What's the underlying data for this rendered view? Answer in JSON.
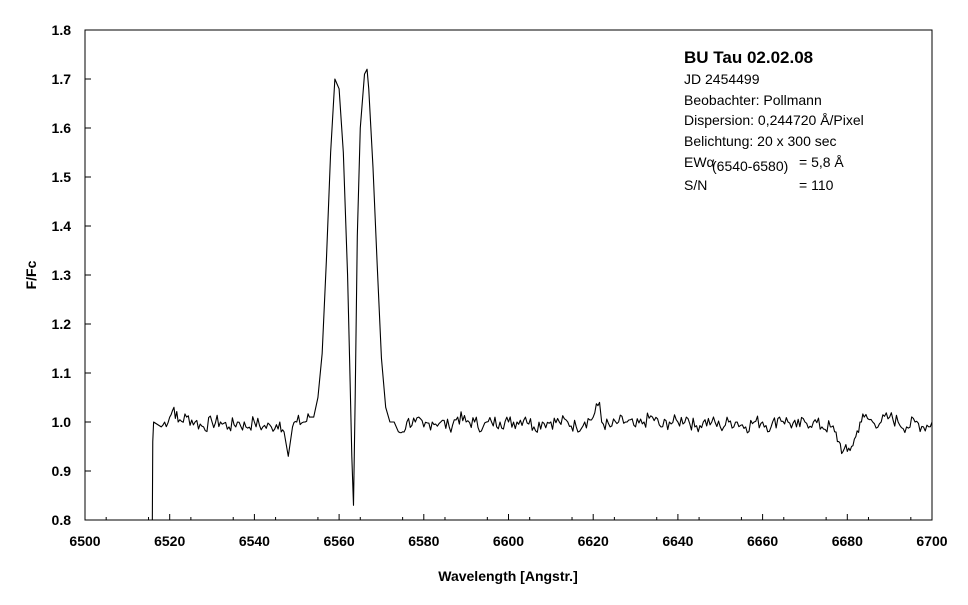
{
  "chart_data": {
    "type": "line",
    "title": "BU Tau 02.02.08",
    "xlabel": "Wavelength [Angstr.]",
    "ylabel": "F/Fc",
    "xlim": [
      6500,
      6700
    ],
    "ylim": [
      0.8,
      1.8
    ],
    "x_ticks": [
      "6500",
      "6520",
      "6540",
      "6560",
      "6580",
      "6600",
      "6620",
      "6640",
      "6660",
      "6680",
      "6700"
    ],
    "y_ticks": [
      "0.8",
      "0.9",
      "1.0",
      "1.1",
      "1.2",
      "1.3",
      "1.4",
      "1.5",
      "1.6",
      "1.7",
      "1.8"
    ],
    "grid": false,
    "legend": "none",
    "line_color": "#000000",
    "annotations": {
      "jd": "JD 2454499",
      "observer": "Beobachter: Pollmann",
      "dispersion": "Dispersion: 0,244720 Å/Pixel",
      "exposure": "Belichtung: 20 x 300 sec",
      "ew_label": "EWα",
      "ew_range": "(6540-6580)",
      "ew_value": "= 5,8 Å",
      "sn_label": "S/N",
      "sn_value": "= 110"
    },
    "series": [
      {
        "x": [
          6515.9,
          6516.0,
          6516.2,
          6518,
          6520,
          6521,
          6522,
          6524,
          6526,
          6528,
          6530,
          6532,
          6534,
          6536,
          6538,
          6540,
          6542,
          6544,
          6546,
          6547,
          6548,
          6549,
          6550,
          6552,
          6553,
          6554,
          6555,
          6556,
          6557,
          6558,
          6559,
          6560,
          6561,
          6562,
          6562.5,
          6563,
          6563.4,
          6563.8,
          6564.3,
          6565,
          6566,
          6566.6,
          6567,
          6568,
          6569,
          6570,
          6571,
          6572,
          6573,
          6574,
          6575,
          6576,
          6578,
          6580,
          6582,
          6584,
          6586,
          6588,
          6590,
          6592,
          6594,
          6596,
          6598,
          6600,
          6602,
          6604,
          6606,
          6608,
          6610,
          6612,
          6614,
          6616,
          6618,
          6620,
          6621.5,
          6622,
          6624,
          6626,
          6628,
          6630,
          6632,
          6634,
          6636,
          6638,
          6640,
          6642,
          6644,
          6646,
          6648,
          6650,
          6652,
          6654,
          6656,
          6658,
          6660,
          6662,
          6664,
          6666,
          6668,
          6670,
          6672,
          6674,
          6676,
          6677,
          6678,
          6679,
          6680,
          6681,
          6682,
          6683,
          6684,
          6686,
          6688,
          6690,
          6692,
          6694,
          6696,
          6698,
          6700
        ],
        "y": [
          0.8,
          0.96,
          1.0,
          0.99,
          1.01,
          1.03,
          1.0,
          1.01,
          1.0,
          0.99,
          1.0,
          1.0,
          0.99,
          1.0,
          0.99,
          1.0,
          0.99,
          0.99,
          1.0,
          0.98,
          0.93,
          0.99,
          1.0,
          1.0,
          1.01,
          1.01,
          1.05,
          1.14,
          1.33,
          1.55,
          1.7,
          1.68,
          1.55,
          1.3,
          1.12,
          0.93,
          0.83,
          1.05,
          1.38,
          1.6,
          1.71,
          1.72,
          1.68,
          1.52,
          1.32,
          1.13,
          1.03,
          1.0,
          1.0,
          0.98,
          0.98,
          1.0,
          1.0,
          0.99,
          1.0,
          1.0,
          0.99,
          1.01,
          1.0,
          1.0,
          0.99,
          1.0,
          1.0,
          1.0,
          1.0,
          1.01,
          0.99,
          1.0,
          1.0,
          1.0,
          1.0,
          0.99,
          1.0,
          1.01,
          1.04,
          1.0,
          0.99,
          1.0,
          1.0,
          0.99,
          1.0,
          1.01,
          0.99,
          1.0,
          1.0,
          1.01,
          0.99,
          1.0,
          1.0,
          0.99,
          1.0,
          1.0,
          0.99,
          1.0,
          1.0,
          0.99,
          1.01,
          1.0,
          0.99,
          1.0,
          1.0,
          0.99,
          0.99,
          0.98,
          0.96,
          0.94,
          0.94,
          0.95,
          0.97,
          1.0,
          1.01,
          1.0,
          1.0,
          1.01,
          1.0,
          0.99,
          1.0,
          0.99,
          1.0
        ]
      }
    ]
  }
}
